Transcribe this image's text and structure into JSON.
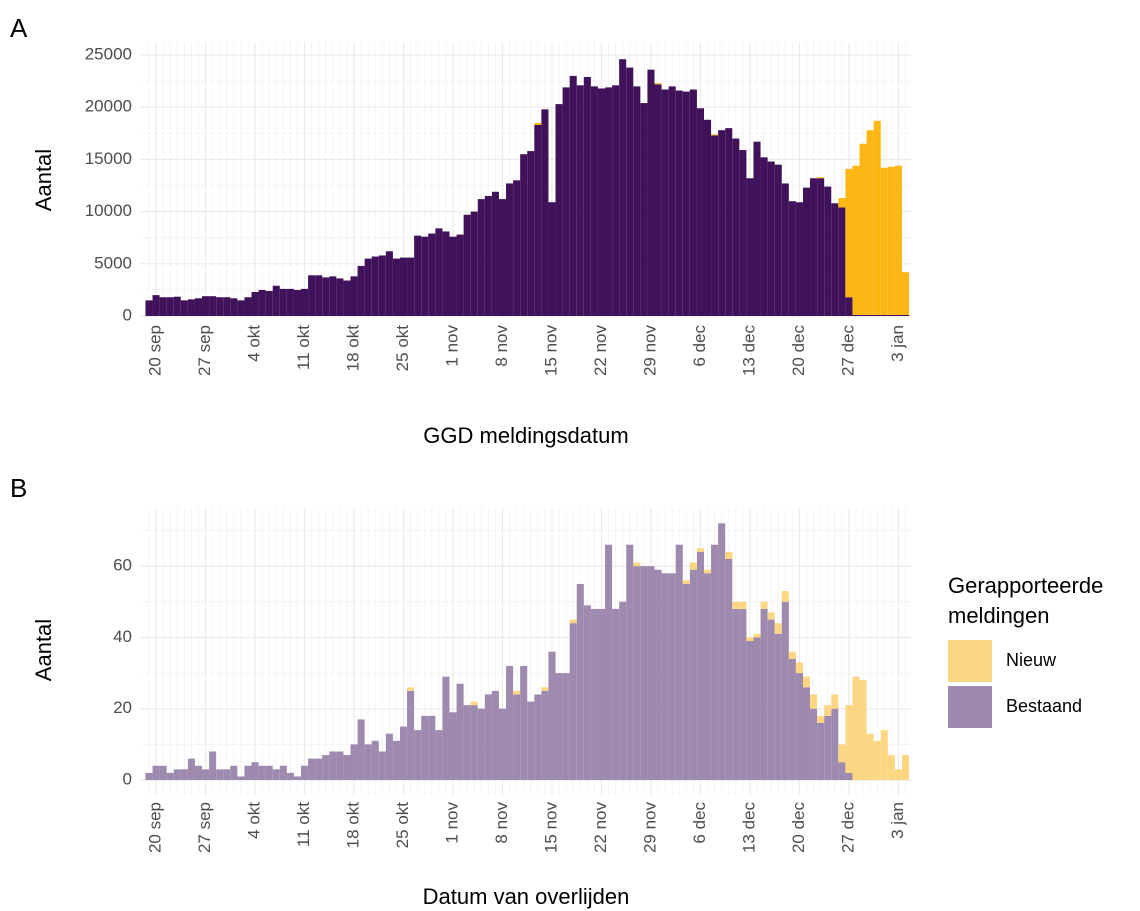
{
  "chart_data": [
    {
      "type": "stacked-bar",
      "panel": "A",
      "xlabel": "GGD meldingsdatum",
      "ylabel": "Aantal",
      "x": [
        "19 sep",
        "20 sep",
        "21 sep",
        "22 sep",
        "23 sep",
        "24 sep",
        "25 sep",
        "26 sep",
        "27 sep",
        "28 sep",
        "29 sep",
        "30 sep",
        "1 okt",
        "2 okt",
        "3 okt",
        "4 okt",
        "5 okt",
        "6 okt",
        "7 okt",
        "8 okt",
        "9 okt",
        "10 okt",
        "11 okt",
        "12 okt",
        "13 okt",
        "14 okt",
        "15 okt",
        "16 okt",
        "17 okt",
        "18 okt",
        "19 okt",
        "20 okt",
        "21 okt",
        "22 okt",
        "23 okt",
        "24 okt",
        "25 okt",
        "26 okt",
        "27 okt",
        "28 okt",
        "29 okt",
        "30 okt",
        "31 okt",
        "1 nov",
        "2 nov",
        "3 nov",
        "4 nov",
        "5 nov",
        "6 nov",
        "7 nov",
        "8 nov",
        "9 nov",
        "10 nov",
        "11 nov",
        "12 nov",
        "13 nov",
        "14 nov",
        "15 nov",
        "16 nov",
        "17 nov",
        "18 nov",
        "19 nov",
        "20 nov",
        "21 nov",
        "22 nov",
        "23 nov",
        "24 nov",
        "25 nov",
        "26 nov",
        "27 nov",
        "28 nov",
        "29 nov",
        "30 nov",
        "1 dec",
        "2 dec",
        "3 dec",
        "4 dec",
        "5 dec",
        "6 dec",
        "7 dec",
        "8 dec",
        "9 dec",
        "10 dec",
        "11 dec",
        "12 dec",
        "13 dec",
        "14 dec",
        "15 dec",
        "16 dec",
        "17 dec",
        "18 dec",
        "19 dec",
        "20 dec",
        "21 dec",
        "22 dec",
        "23 dec",
        "24 dec",
        "25 dec",
        "26 dec",
        "27 dec",
        "28 dec",
        "29 dec",
        "30 dec",
        "31 dec",
        "1 jan",
        "2 jan",
        "3 jan",
        "4 jan"
      ],
      "xticks": [
        "20 sep",
        "27 sep",
        "4 okt",
        "11 okt",
        "18 okt",
        "25 okt",
        "1 nov",
        "8 nov",
        "15 nov",
        "22 nov",
        "29 nov",
        "6 dec",
        "13 dec",
        "20 dec",
        "27 dec",
        "3 jan"
      ],
      "ylim": [
        -190,
        26250
      ],
      "yticks": [
        0,
        5000,
        10000,
        15000,
        20000,
        25000
      ],
      "grid": true,
      "series": [
        {
          "name": "Bestaand",
          "color": "#3f125a",
          "values": [
            1500,
            2000,
            1800,
            1800,
            1850,
            1500,
            1600,
            1700,
            1900,
            1900,
            1800,
            1800,
            1700,
            1500,
            1800,
            2300,
            2500,
            2400,
            2900,
            2600,
            2600,
            2500,
            2600,
            3900,
            3900,
            3700,
            3800,
            3600,
            3400,
            3800,
            4800,
            5500,
            5700,
            5800,
            6200,
            5500,
            5600,
            5600,
            7700,
            7600,
            7900,
            8400,
            8100,
            7600,
            7800,
            9700,
            10000,
            11200,
            11500,
            11900,
            11200,
            12700,
            13000,
            15500,
            15800,
            18300,
            19800,
            10900,
            20300,
            21900,
            23000,
            22100,
            22900,
            22000,
            21800,
            21900,
            22100,
            24600,
            23800,
            22000,
            20400,
            23600,
            22200,
            21700,
            22000,
            21600,
            21500,
            21700,
            19900,
            18800,
            17300,
            17800,
            18000,
            17000,
            15900,
            13200,
            16700,
            15200,
            14800,
            14500,
            12700,
            11000,
            10900,
            12300,
            13200,
            13200,
            12400,
            10800,
            10400,
            1800,
            100,
            100,
            100,
            100,
            100,
            100,
            100,
            100
          ]
        },
        {
          "name": "Nieuw",
          "color": "#fdb714",
          "values": [
            0,
            0,
            0,
            0,
            0,
            0,
            0,
            0,
            0,
            0,
            0,
            0,
            0,
            0,
            0,
            0,
            0,
            0,
            0,
            0,
            0,
            0,
            0,
            0,
            0,
            0,
            0,
            0,
            0,
            0,
            0,
            0,
            0,
            0,
            0,
            0,
            0,
            0,
            0,
            0,
            0,
            0,
            0,
            0,
            0,
            0,
            0,
            0,
            0,
            0,
            0,
            0,
            0,
            0,
            0,
            200,
            0,
            0,
            0,
            0,
            0,
            0,
            0,
            0,
            0,
            0,
            0,
            0,
            0,
            0,
            0,
            0,
            100,
            0,
            0,
            0,
            0,
            0,
            0,
            0,
            100,
            0,
            0,
            0,
            0,
            0,
            0,
            0,
            0,
            0,
            0,
            0,
            0,
            0,
            0,
            100,
            0,
            0,
            900,
            12300,
            14300,
            16400,
            17700,
            18600,
            14100,
            14200,
            14300,
            4100
          ]
        }
      ]
    },
    {
      "type": "stacked-bar",
      "panel": "B",
      "xlabel": "Datum van overlijden",
      "ylabel": "Aantal",
      "x": [
        "19 sep",
        "20 sep",
        "21 sep",
        "22 sep",
        "23 sep",
        "24 sep",
        "25 sep",
        "26 sep",
        "27 sep",
        "28 sep",
        "29 sep",
        "30 sep",
        "1 okt",
        "2 okt",
        "3 okt",
        "4 okt",
        "5 okt",
        "6 okt",
        "7 okt",
        "8 okt",
        "9 okt",
        "10 okt",
        "11 okt",
        "12 okt",
        "13 okt",
        "14 okt",
        "15 okt",
        "16 okt",
        "17 okt",
        "18 okt",
        "19 okt",
        "20 okt",
        "21 okt",
        "22 okt",
        "23 okt",
        "24 okt",
        "25 okt",
        "26 okt",
        "27 okt",
        "28 okt",
        "29 okt",
        "30 okt",
        "31 okt",
        "1 nov",
        "2 nov",
        "3 nov",
        "4 nov",
        "5 nov",
        "6 nov",
        "7 nov",
        "8 nov",
        "9 nov",
        "10 nov",
        "11 nov",
        "12 nov",
        "13 nov",
        "14 nov",
        "15 nov",
        "16 nov",
        "17 nov",
        "18 nov",
        "19 nov",
        "20 nov",
        "21 nov",
        "22 nov",
        "23 nov",
        "24 nov",
        "25 nov",
        "26 nov",
        "27 nov",
        "28 nov",
        "29 nov",
        "30 nov",
        "1 dec",
        "2 dec",
        "3 dec",
        "4 dec",
        "5 dec",
        "6 dec",
        "7 dec",
        "8 dec",
        "9 dec",
        "10 dec",
        "11 dec",
        "12 dec",
        "13 dec",
        "14 dec",
        "15 dec",
        "16 dec",
        "17 dec",
        "18 dec",
        "19 dec",
        "20 dec",
        "21 dec",
        "22 dec",
        "23 dec",
        "24 dec",
        "25 dec",
        "26 dec",
        "27 dec",
        "28 dec",
        "29 dec",
        "30 dec",
        "31 dec",
        "1 jan",
        "2 jan",
        "3 jan",
        "4 jan"
      ],
      "xticks": [
        "20 sep",
        "27 sep",
        "4 okt",
        "11 okt",
        "18 okt",
        "25 okt",
        "1 nov",
        "8 nov",
        "15 nov",
        "22 nov",
        "29 nov",
        "6 dec",
        "13 dec",
        "20 dec",
        "27 dec",
        "3 jan"
      ],
      "ylim": [
        -4.2,
        76.3
      ],
      "yticks": [
        0,
        20,
        40,
        60
      ],
      "grid": true,
      "legend": {
        "title": [
          "Gerapporteerde",
          "meldingen"
        ],
        "position": "right"
      },
      "series": [
        {
          "name": "Bestaand",
          "color": "#9d8aae",
          "values": [
            2,
            4,
            4,
            2,
            3,
            3,
            6,
            4,
            3,
            8,
            3,
            3,
            4,
            1,
            4,
            5,
            4,
            4,
            3,
            4,
            2,
            1,
            4,
            6,
            6,
            7,
            8,
            8,
            7,
            10,
            17,
            10,
            11,
            8,
            13,
            11,
            15,
            25,
            14,
            18,
            18,
            14,
            29,
            19,
            27,
            21,
            21,
            20,
            24,
            25,
            20,
            32,
            24,
            32,
            22,
            24,
            25,
            36,
            30,
            30,
            44,
            55,
            49,
            48,
            48,
            66,
            48,
            50,
            66,
            60,
            60,
            60,
            59,
            58,
            58,
            66,
            55,
            59,
            64,
            58,
            66,
            72,
            62,
            48,
            48,
            39,
            40,
            48,
            45,
            41,
            50,
            34,
            30,
            26,
            20,
            16,
            18,
            20,
            5,
            2,
            0,
            0,
            0,
            0,
            0,
            0,
            0,
            0
          ]
        },
        {
          "name": "Nieuw",
          "color": "#fdd683",
          "values": [
            0,
            0,
            0,
            0,
            0,
            0,
            0,
            0,
            0,
            0,
            0,
            0,
            0,
            0,
            0,
            0,
            0,
            0,
            0,
            0,
            0,
            0,
            0,
            0,
            0,
            0,
            0,
            0,
            0,
            0,
            0,
            0,
            0,
            0,
            0,
            0,
            0,
            1,
            0,
            0,
            0,
            0,
            0,
            0,
            0,
            0,
            1,
            0,
            0,
            0,
            0,
            0,
            1,
            0,
            0,
            0,
            1,
            0,
            0,
            0,
            1,
            0,
            0,
            0,
            0,
            0,
            0,
            0,
            0,
            1,
            0,
            0,
            0,
            0,
            0,
            0,
            1,
            2,
            1,
            1,
            0,
            0,
            2,
            2,
            2,
            1,
            1,
            2,
            2,
            3,
            3,
            2,
            3,
            3,
            4,
            2,
            3,
            4,
            5,
            19,
            29,
            28,
            13,
            11,
            14,
            7,
            3,
            7
          ]
        }
      ]
    }
  ]
}
